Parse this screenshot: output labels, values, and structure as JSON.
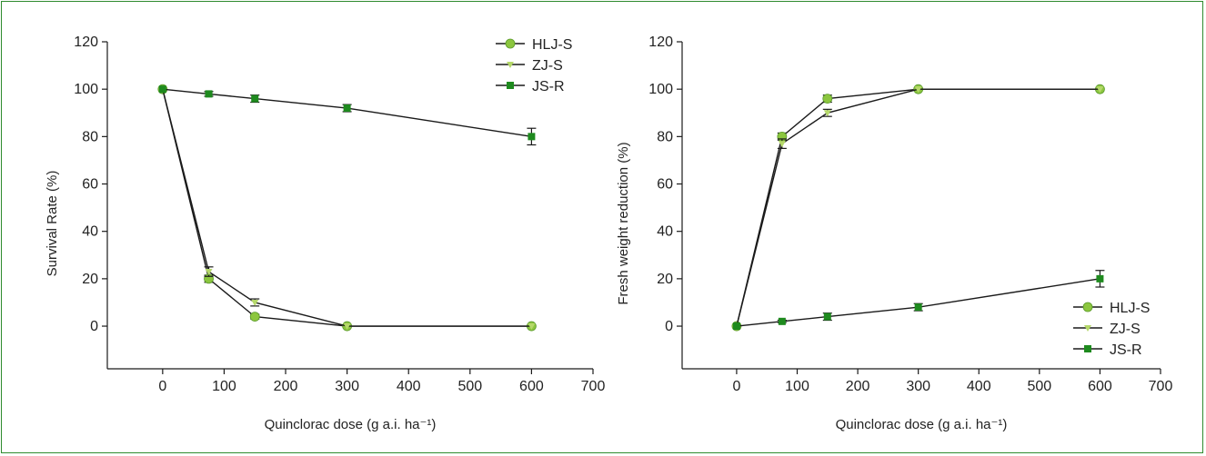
{
  "colors": {
    "frame": "#2e8b2e",
    "hlj_s": "#8cc63f",
    "zj_s": "#b5d86a",
    "js_r": "#1e8a1e",
    "line": "#1a1a1a"
  },
  "chart_data": [
    {
      "type": "line",
      "title": "",
      "xlabel": "Quinclorac dose (g a.i. ha⁻¹)",
      "ylabel": "Survival Rate (%)",
      "xlim": [
        -90,
        700
      ],
      "ylim": [
        -18,
        120
      ],
      "xticks": [
        0,
        100,
        200,
        300,
        400,
        500,
        600,
        700
      ],
      "yticks": [
        0,
        20,
        40,
        60,
        80,
        100,
        120
      ],
      "grid": false,
      "legend_position": "top-right",
      "x": [
        0,
        75,
        150,
        300,
        600
      ],
      "series": [
        {
          "name": "HLJ-S",
          "marker": "circle",
          "values": [
            100,
            20,
            4,
            0,
            0
          ],
          "errors": [
            0,
            1.5,
            1,
            0,
            0
          ]
        },
        {
          "name": "ZJ-S",
          "marker": "triangle",
          "values": [
            100,
            23,
            10,
            0,
            0
          ],
          "errors": [
            0,
            2,
            1.5,
            0,
            0
          ]
        },
        {
          "name": "JS-R",
          "marker": "square",
          "values": [
            100,
            98,
            96,
            92,
            80
          ],
          "errors": [
            0,
            1,
            1.5,
            1.5,
            3.5
          ]
        }
      ]
    },
    {
      "type": "line",
      "title": "",
      "xlabel": "Quinclorac dose (g a.i. ha⁻¹)",
      "ylabel": "Fresh weight reduction (%)",
      "xlim": [
        -90,
        700
      ],
      "ylim": [
        -18,
        120
      ],
      "xticks": [
        0,
        100,
        200,
        300,
        400,
        500,
        600,
        700
      ],
      "yticks": [
        0,
        20,
        40,
        60,
        80,
        100,
        120
      ],
      "grid": false,
      "legend_position": "bottom-right",
      "x": [
        0,
        75,
        150,
        300,
        600
      ],
      "series": [
        {
          "name": "HLJ-S",
          "marker": "circle",
          "values": [
            0,
            80,
            96,
            100,
            100
          ],
          "errors": [
            0,
            1.5,
            1.5,
            0,
            0
          ]
        },
        {
          "name": "ZJ-S",
          "marker": "triangle",
          "values": [
            0,
            77,
            90,
            100,
            100
          ],
          "errors": [
            0,
            2,
            1.5,
            0,
            0
          ]
        },
        {
          "name": "JS-R",
          "marker": "square",
          "values": [
            0,
            2,
            4,
            8,
            20
          ],
          "errors": [
            0,
            0.5,
            1.5,
            1.5,
            3.5
          ]
        }
      ]
    }
  ]
}
